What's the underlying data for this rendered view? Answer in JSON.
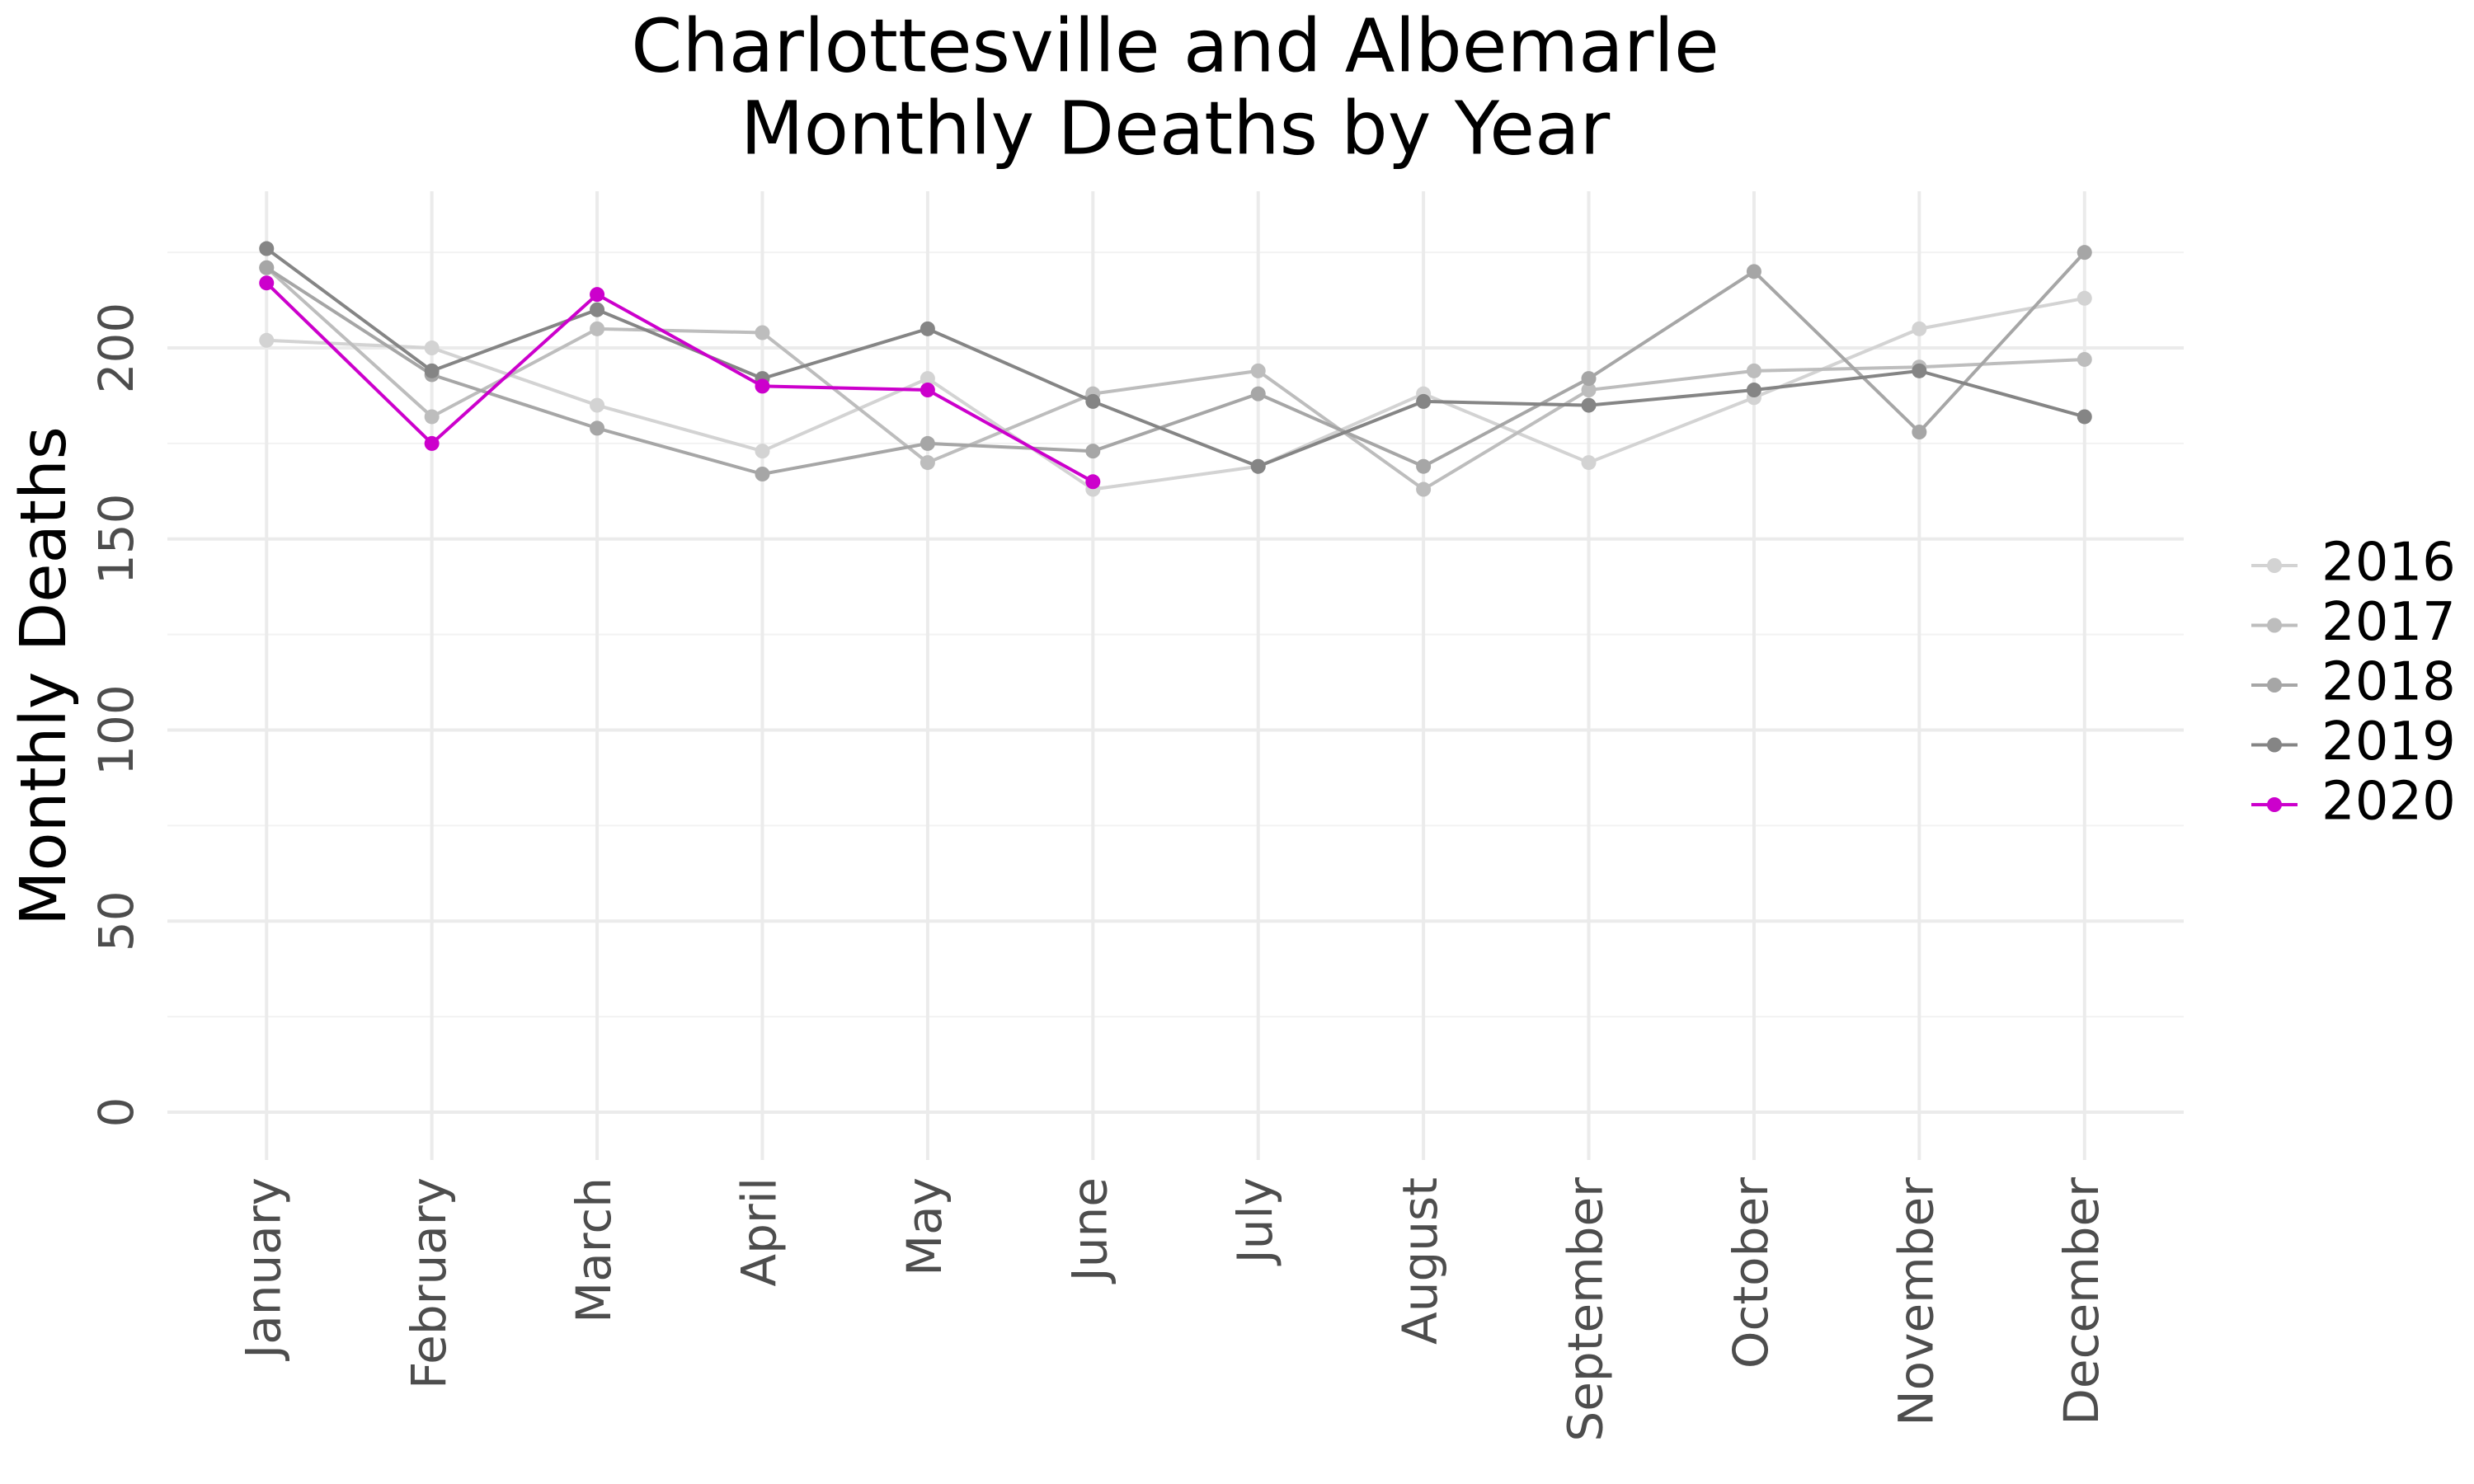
{
  "chart_data": {
    "type": "line",
    "title": [
      "Charlottesville and Albemarle",
      "Monthly Deaths by Year"
    ],
    "y_label": "Monthly Deaths",
    "categories": [
      "January",
      "February",
      "March",
      "April",
      "May",
      "June",
      "July",
      "August",
      "September",
      "October",
      "November",
      "December"
    ],
    "series": [
      {
        "name": "2016",
        "color": "#d3d3d3",
        "values": [
          202,
          200,
          185,
          173,
          192,
          163,
          169,
          188,
          170,
          187,
          205,
          213
        ]
      },
      {
        "name": "2017",
        "color": "#bdbdbd",
        "values": [
          221,
          182,
          205,
          204,
          170,
          188,
          194,
          163,
          189,
          194,
          195,
          197
        ]
      },
      {
        "name": "2018",
        "color": "#a6a6a6",
        "values": [
          221,
          193,
          179,
          167,
          175,
          173,
          188,
          169,
          192,
          220,
          178,
          225
        ]
      },
      {
        "name": "2019",
        "color": "#858585",
        "values": [
          226,
          194,
          210,
          192,
          205,
          186,
          169,
          186,
          185,
          189,
          194,
          182
        ]
      },
      {
        "name": "2020",
        "color": "#cc00cc",
        "values": [
          217,
          175,
          214,
          190,
          189,
          165,
          null,
          null,
          null,
          null,
          null,
          null
        ]
      }
    ],
    "ylim": [
      -12.5,
      241
    ],
    "yticks": [
      0,
      50,
      100,
      150,
      200
    ],
    "grid": true,
    "legend": "right"
  }
}
